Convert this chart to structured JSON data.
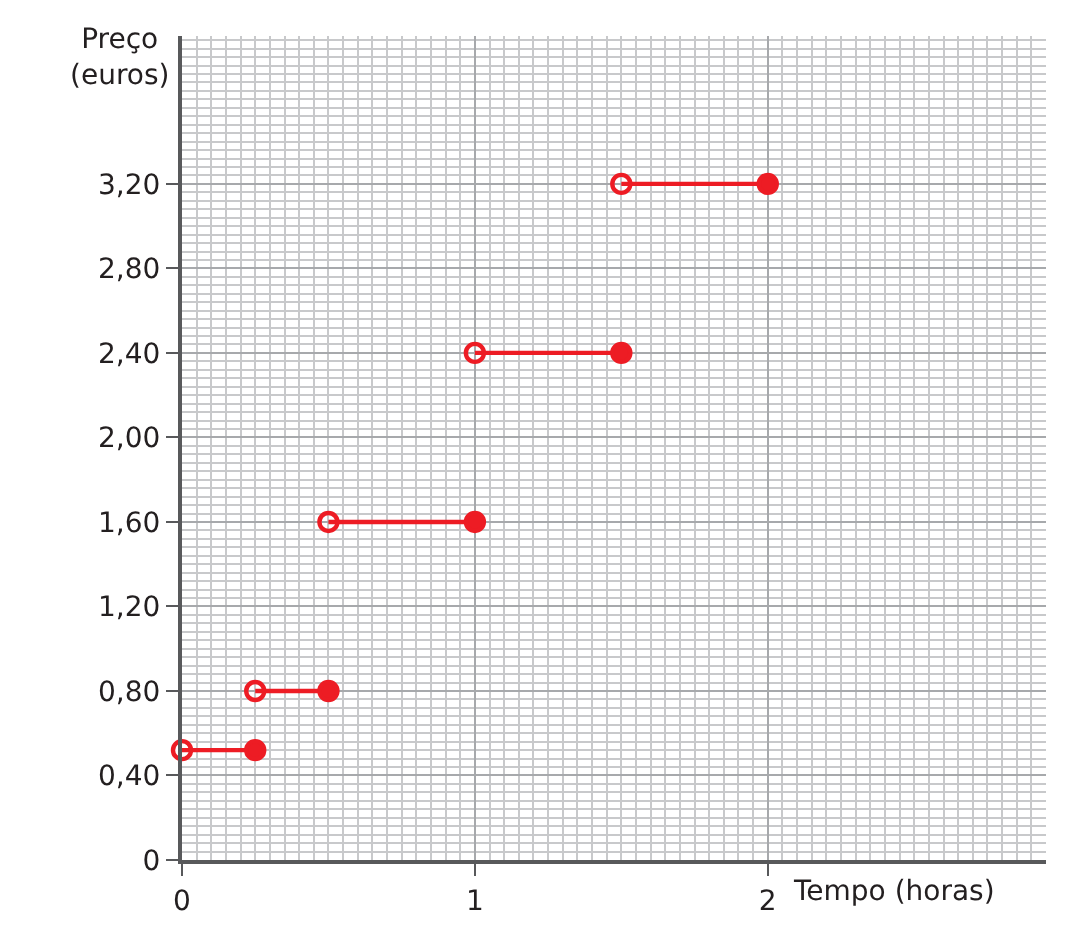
{
  "chart_data": {
    "type": "line",
    "xlabel": "Tempo (horas)",
    "ylabel": "Preço\n(euros)",
    "series": [
      {
        "x": [
          0,
          0.25
        ],
        "values": [
          0.52,
          0.52
        ],
        "color": "#ed1c24"
      },
      {
        "x": [
          0.25,
          0.5
        ],
        "values": [
          0.8,
          0.8
        ],
        "color": "#ed1c24"
      },
      {
        "x": [
          0.5,
          1
        ],
        "values": [
          1.6,
          1.6
        ],
        "color": "#ed1c24"
      },
      {
        "x": [
          1,
          1.5
        ],
        "values": [
          2.4,
          2.4
        ],
        "color": "#ed1c24"
      },
      {
        "x": [
          1.5,
          2
        ],
        "values": [
          3.2,
          3.2
        ],
        "color": "#ed1c24"
      }
    ],
    "xlim": [
      0,
      2.95
    ],
    "xticks": [
      0,
      1,
      2
    ],
    "ylim": [
      0,
      3.9
    ],
    "yticks": [
      0,
      {
        "value": 0.4,
        "label": "0,40"
      },
      {
        "value": 0.8,
        "label": "0,80"
      },
      {
        "value": 1.2,
        "label": "1,20"
      },
      {
        "value": 1.6,
        "label": "1,60"
      },
      {
        "value": 2.0,
        "label": "2,00"
      },
      {
        "value": 2.4,
        "label": "2,40"
      },
      {
        "value": 2.8,
        "label": "2,80"
      },
      {
        "value": 3.2,
        "label": "3,20"
      }
    ],
    "grid": true,
    "marker": "circle",
    "line_style": "solid"
  }
}
